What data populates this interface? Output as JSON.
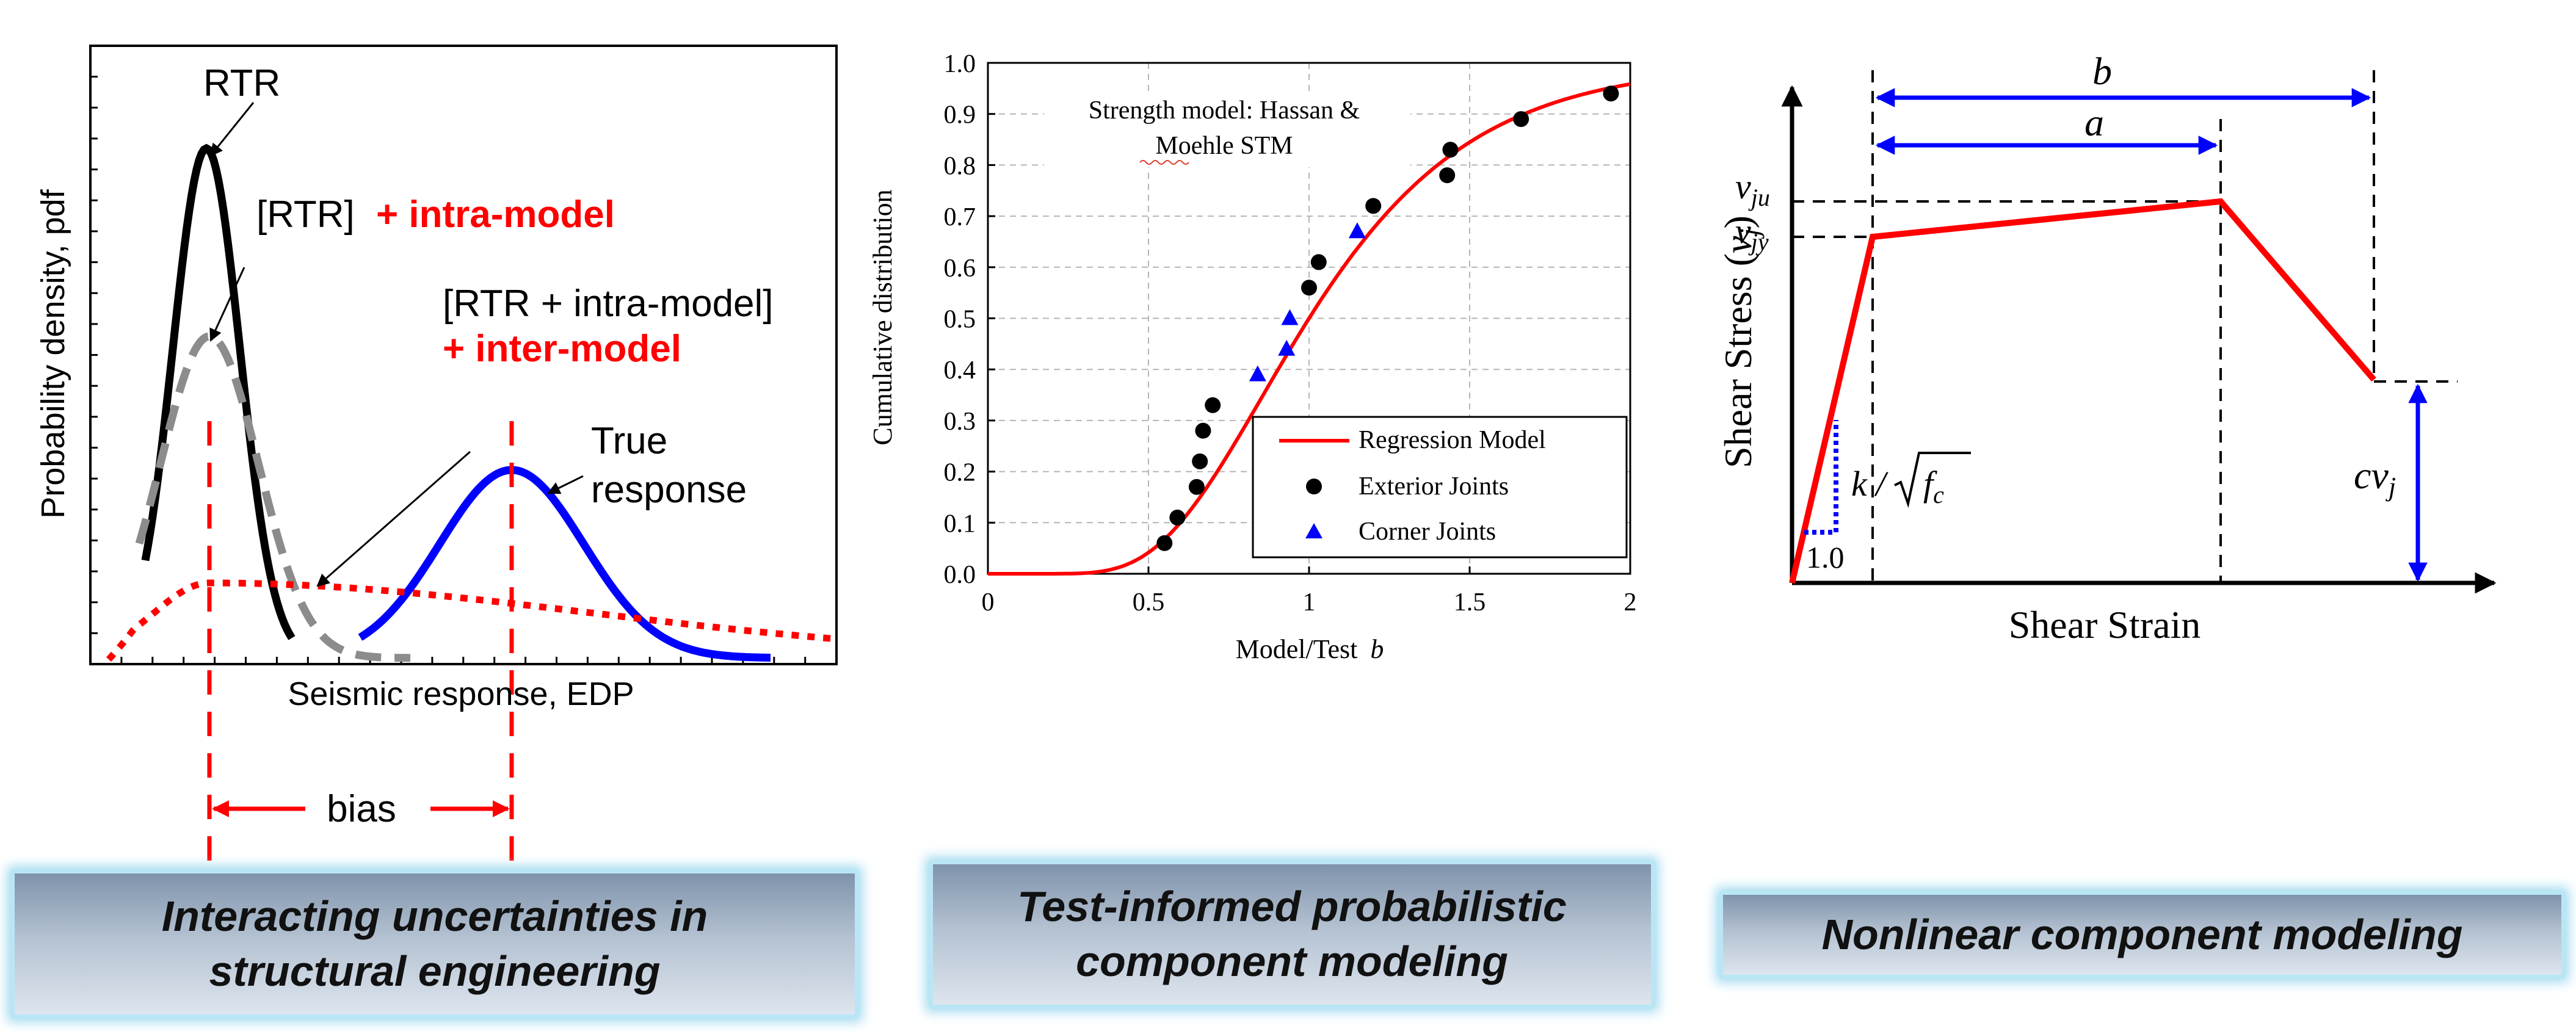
{
  "panel1": {
    "rtr_label": "RTR",
    "rtr_intra_label_black": "[RTR]",
    "rtr_intra_label_red": "+ intra-model",
    "inter_label_line1": "[RTR + intra-model]",
    "inter_label_line2": "+ inter-model",
    "true_label_line1": "True",
    "true_label_line2": "response",
    "ylabel": "Probability density, pdf",
    "xlabel": "Seismic response, EDP",
    "bias_label": "bias"
  },
  "chart_data": {
    "type": "scatter",
    "title": "Strength model: Hassan & Moehle STM",
    "title_line1": "Strength model: Hassan &",
    "title_line2": "Moehle STM",
    "xlabel_prefix": "Model/Test",
    "xlabel_var": "b",
    "ylabel": "Cumulative distribution",
    "xlim": [
      0,
      2
    ],
    "ylim": [
      0,
      1
    ],
    "xticks": [
      "0",
      "0.5",
      "1",
      "1.5",
      "2"
    ],
    "yticks": [
      "0.0",
      "0.1",
      "0.2",
      "0.3",
      "0.4",
      "0.5",
      "0.6",
      "0.7",
      "0.8",
      "0.9",
      "1.0"
    ],
    "grid": true,
    "legend_position": "bottom-right",
    "series": [
      {
        "name": "Regression Model",
        "kind": "line",
        "color": "#ff0000"
      },
      {
        "name": "Exterior Joints",
        "kind": "scatter",
        "marker": "circle",
        "color": "#000000",
        "points": [
          [
            0.55,
            0.06
          ],
          [
            0.59,
            0.11
          ],
          [
            0.65,
            0.17
          ],
          [
            0.66,
            0.22
          ],
          [
            0.67,
            0.28
          ],
          [
            0.7,
            0.33
          ],
          [
            1.0,
            0.56
          ],
          [
            1.03,
            0.61
          ],
          [
            1.2,
            0.72
          ],
          [
            1.43,
            0.78
          ],
          [
            1.44,
            0.83
          ],
          [
            1.66,
            0.89
          ],
          [
            1.94,
            0.94
          ]
        ]
      },
      {
        "name": "Corner Joints",
        "kind": "scatter",
        "marker": "triangle",
        "color": "#0000ff",
        "points": [
          [
            0.84,
            0.39
          ],
          [
            0.93,
            0.44
          ],
          [
            0.94,
            0.5
          ],
          [
            1.15,
            0.67
          ]
        ]
      }
    ]
  },
  "panel3": {
    "xlabel": "Shear Strain",
    "ylabel_prefix": "Shear Stress (",
    "ylabel_var": "v",
    "ylabel_sub": "j",
    "ylabel_suffix": ")",
    "b_label": "b",
    "a_label": "a",
    "vju_var": "v",
    "vju_sub": "ju",
    "vjy_var": "v",
    "vjy_sub": "jy",
    "k_label": "k / ",
    "fc_var": "f",
    "fc_sub": "c",
    "one_label": "1.0",
    "cvj_var": "cv",
    "cvj_sub": "j"
  },
  "banners": {
    "b1_line1": "Interacting uncertainties in",
    "b1_line2": "structural engineering",
    "b2_line1": "Test-informed probabilistic",
    "b2_line2": "component modeling",
    "b3": "Nonlinear component modeling"
  },
  "colors": {
    "red": "#ff0000",
    "blue": "#0000ff",
    "gray": "#8c8c8c",
    "black": "#000000"
  }
}
